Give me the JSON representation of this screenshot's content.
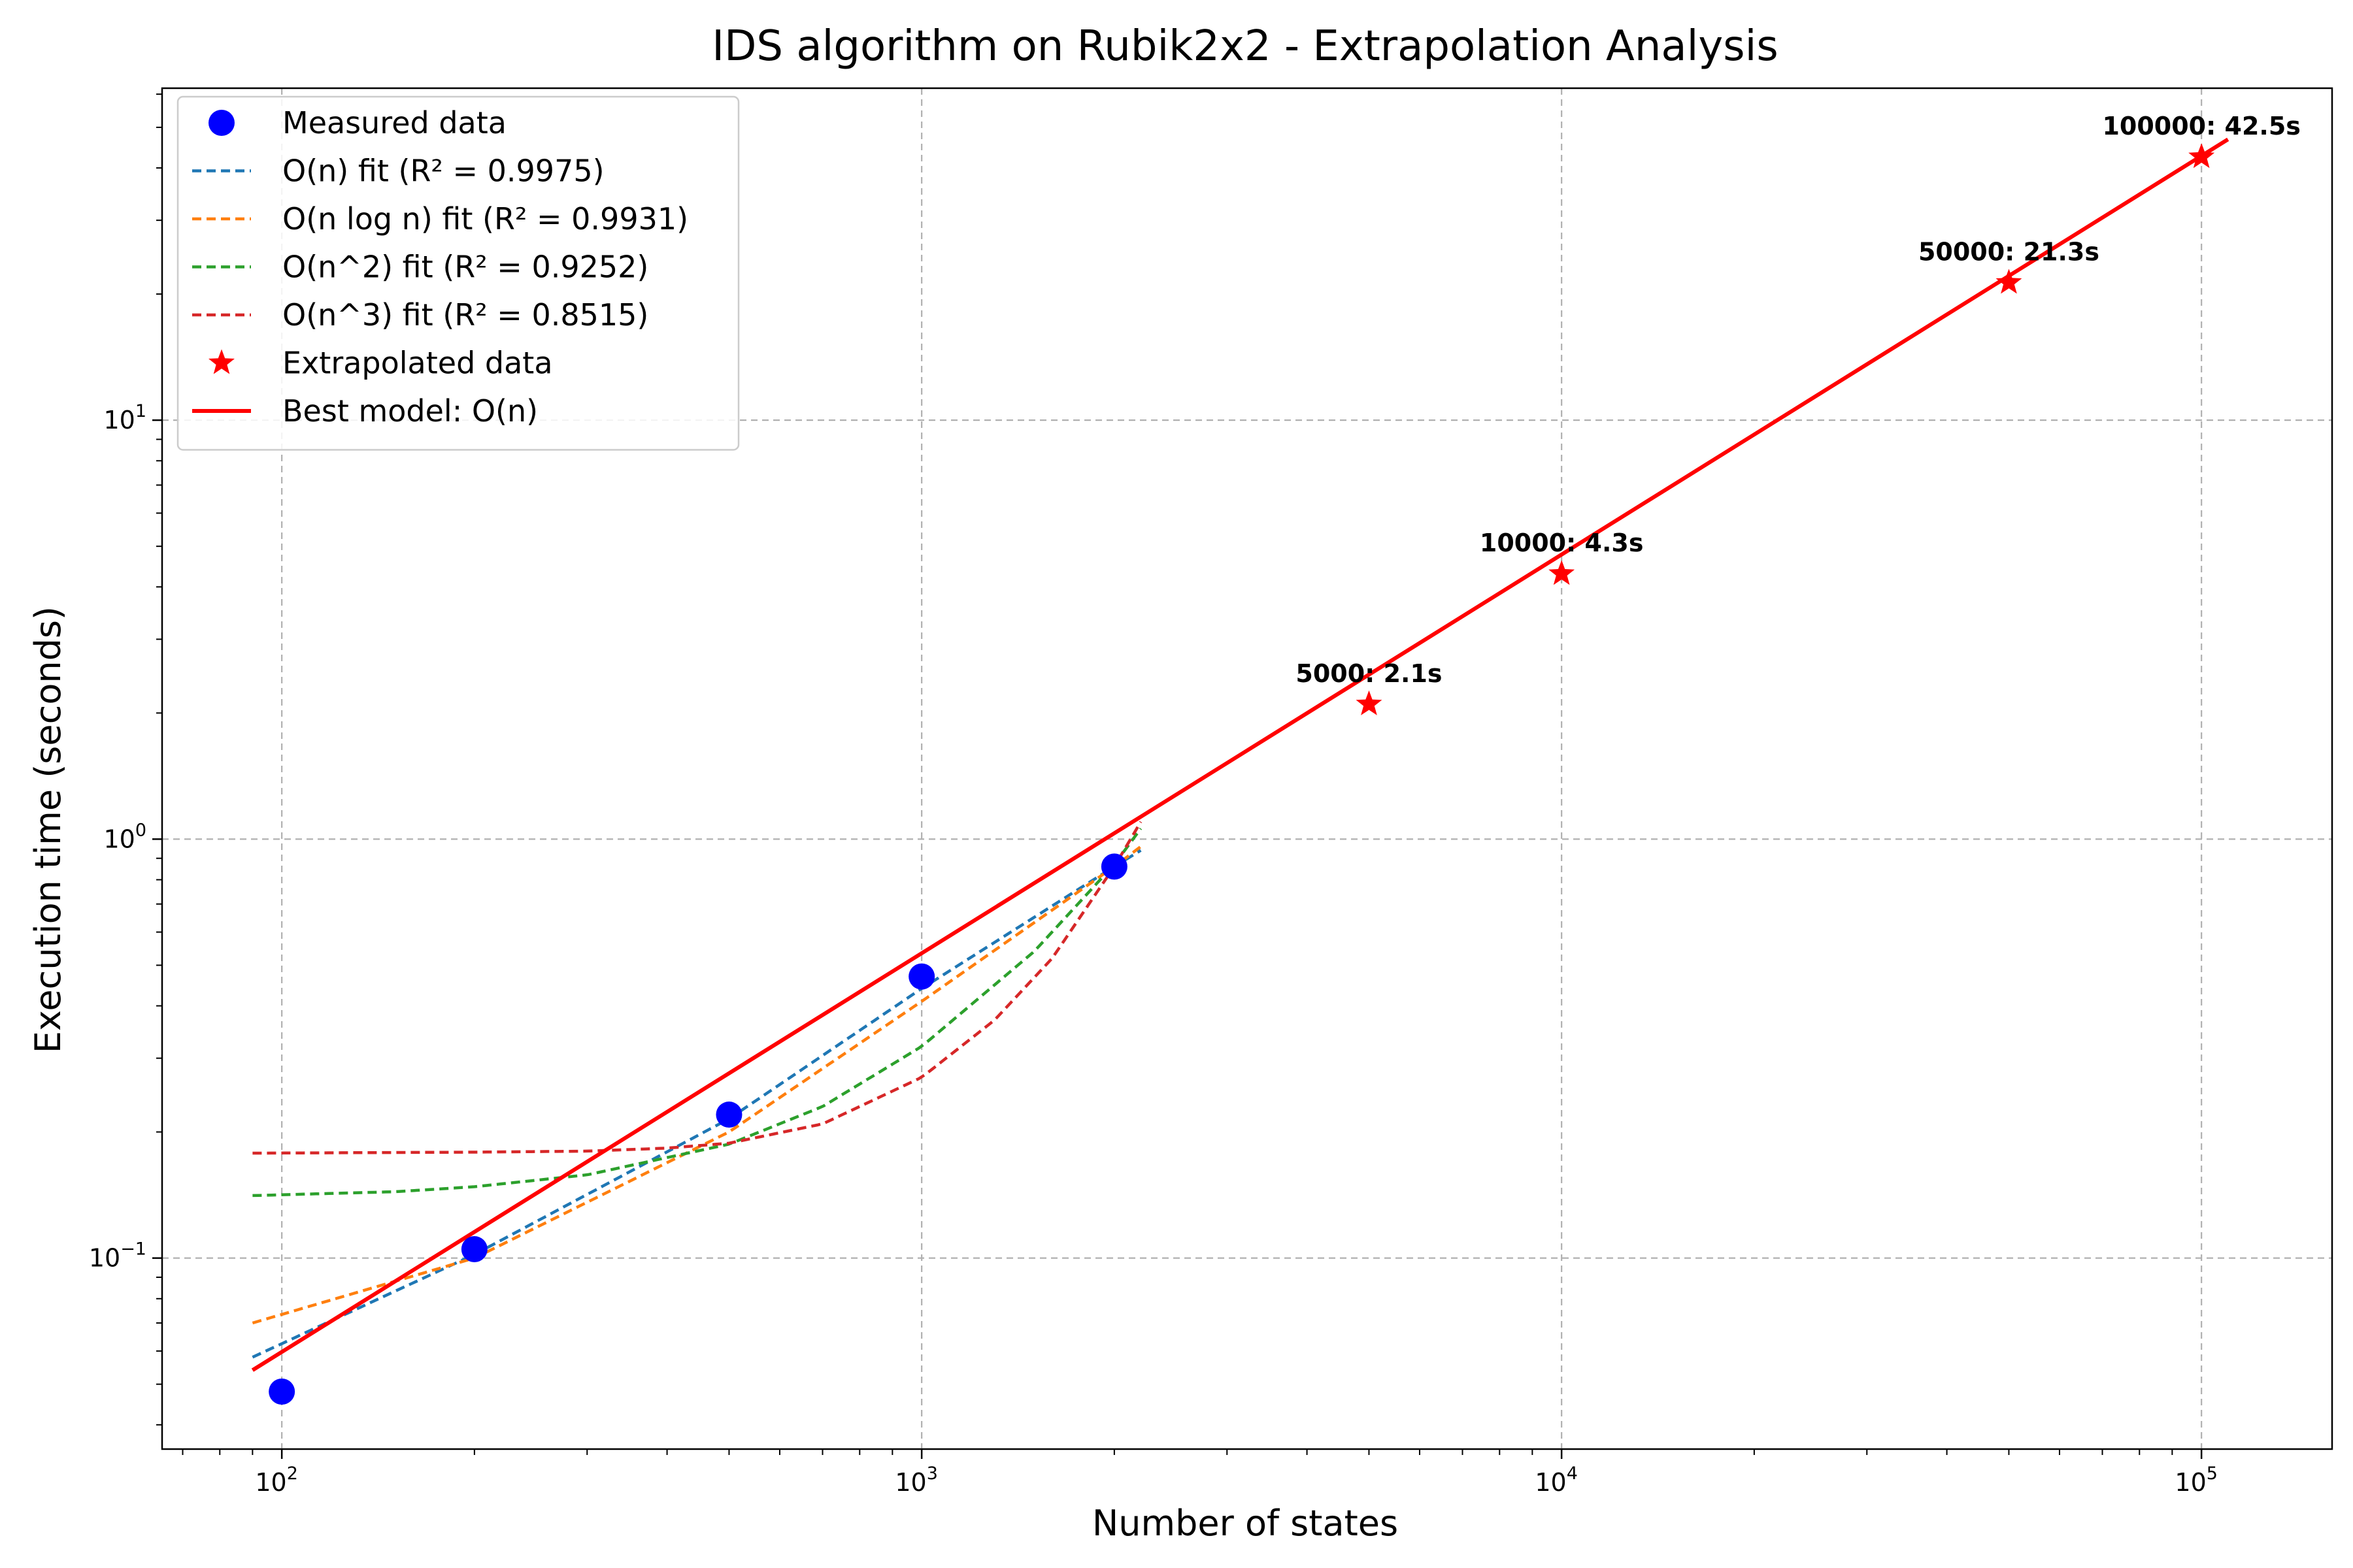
{
  "chart_data": {
    "type": "scatter",
    "title": "IDS algorithm on Rubik2x2 - Extrapolation Analysis",
    "xlabel": "Number of states",
    "ylabel": "Execution time (seconds)",
    "xscale": "log",
    "yscale": "log",
    "xlim": [
      65,
      160000
    ],
    "ylim": [
      0.035,
      62
    ],
    "grid": true,
    "legend_position": "upper-left",
    "x_ticks": [
      {
        "value": 100,
        "base": "10",
        "exp": "2"
      },
      {
        "value": 1000,
        "base": "10",
        "exp": "3"
      },
      {
        "value": 10000,
        "base": "10",
        "exp": "4"
      },
      {
        "value": 100000,
        "base": "10",
        "exp": "5"
      }
    ],
    "y_ticks": [
      {
        "value": 0.1,
        "base": "10",
        "exp": "−1"
      },
      {
        "value": 1,
        "base": "10",
        "exp": "0"
      },
      {
        "value": 10,
        "base": "10",
        "exp": "1"
      }
    ],
    "series": [
      {
        "name": "Measured data",
        "kind": "scatter",
        "marker": "circle",
        "color": "#0000ff",
        "x": [
          100,
          200,
          500,
          1000,
          2000
        ],
        "y": [
          0.048,
          0.105,
          0.22,
          0.47,
          0.86
        ]
      },
      {
        "name": "O(n) fit (R² = 0.9975)",
        "kind": "line",
        "style": "dashed",
        "color": "#1f77b4",
        "x": [
          90,
          200,
          500,
          1000,
          2000,
          2200
        ],
        "y": [
          0.058,
          0.102,
          0.215,
          0.44,
          0.86,
          0.94
        ]
      },
      {
        "name": "O(n log n) fit (R² = 0.9931)",
        "kind": "line",
        "style": "dashed",
        "color": "#ff7f0e",
        "x": [
          90,
          200,
          500,
          1000,
          2000,
          2200
        ],
        "y": [
          0.07,
          0.1,
          0.2,
          0.41,
          0.86,
          0.96
        ]
      },
      {
        "name": "O(n^2) fit (R² = 0.9252)",
        "kind": "line",
        "style": "dashed",
        "color": "#2ca02c",
        "x": [
          90,
          150,
          200,
          300,
          500,
          700,
          1000,
          1500,
          2000,
          2200
        ],
        "y": [
          0.141,
          0.144,
          0.148,
          0.158,
          0.187,
          0.23,
          0.32,
          0.54,
          0.87,
          1.06
        ]
      },
      {
        "name": "O(n^3) fit (R² = 0.8515)",
        "kind": "line",
        "style": "dashed",
        "color": "#d62728",
        "x": [
          90,
          200,
          300,
          400,
          500,
          700,
          1000,
          1300,
          1600,
          2000,
          2200
        ],
        "y": [
          0.178,
          0.179,
          0.18,
          0.183,
          0.188,
          0.209,
          0.27,
          0.37,
          0.52,
          0.86,
          1.1
        ]
      },
      {
        "name": "Extrapolated data",
        "kind": "scatter",
        "marker": "star",
        "color": "#ff0000",
        "x": [
          5000,
          10000,
          50000,
          100000
        ],
        "y": [
          2.1,
          4.3,
          21.3,
          42.5
        ],
        "labels": [
          "5000: 2.1s",
          "10000: 4.3s",
          "50000: 21.3s",
          "100000: 42.5s"
        ]
      },
      {
        "name": "Best model: O(n)",
        "kind": "line",
        "style": "solid",
        "color": "#ff0000",
        "x": [
          90,
          110000
        ],
        "y": [
          0.054,
          46.8
        ]
      }
    ]
  }
}
